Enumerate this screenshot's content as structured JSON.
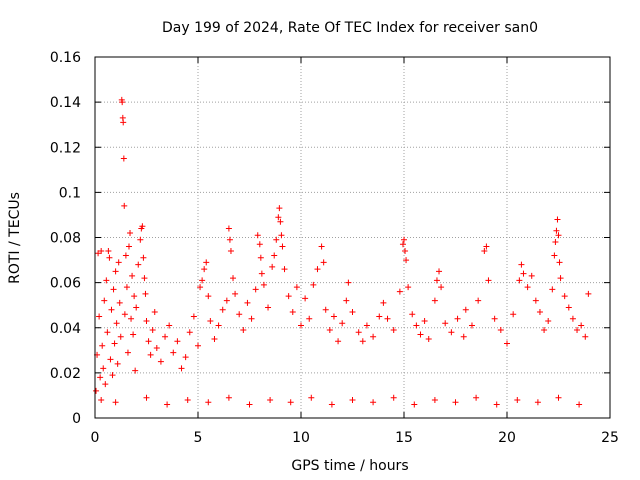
{
  "chart_data": {
    "type": "scatter",
    "title": "Day 199 of 2024, Rate Of TEC Index for receiver san0",
    "xlabel": "GPS time / hours",
    "ylabel": "ROTI / TECUs",
    "xlim": [
      0,
      25
    ],
    "ylim": [
      0,
      0.16
    ],
    "x_ticks": [
      0,
      5,
      10,
      15,
      20,
      25
    ],
    "x_tick_labels": [
      "0",
      "5",
      "10",
      "15",
      "20",
      "25"
    ],
    "y_ticks": [
      0,
      0.02,
      0.04,
      0.06,
      0.08,
      0.1,
      0.12,
      0.14,
      0.16
    ],
    "y_tick_labels": [
      "0",
      "0.02",
      "0.04",
      "0.06",
      "0.08",
      "0.1",
      "0.12",
      "0.14",
      "0.16"
    ],
    "grid": true,
    "marker": "+",
    "color": "#ff0000",
    "series": [
      {
        "name": "ROTI",
        "points": [
          [
            0.05,
            0.012
          ],
          [
            0.1,
            0.028
          ],
          [
            0.15,
            0.073
          ],
          [
            0.2,
            0.045
          ],
          [
            0.25,
            0.018
          ],
          [
            0.3,
            0.074
          ],
          [
            0.35,
            0.032
          ],
          [
            0.4,
            0.022
          ],
          [
            0.45,
            0.052
          ],
          [
            0.5,
            0.015
          ],
          [
            0.55,
            0.061
          ],
          [
            0.6,
            0.038
          ],
          [
            0.65,
            0.074
          ],
          [
            0.7,
            0.071
          ],
          [
            0.75,
            0.026
          ],
          [
            0.8,
            0.048
          ],
          [
            0.85,
            0.019
          ],
          [
            0.9,
            0.057
          ],
          [
            0.95,
            0.033
          ],
          [
            1.0,
            0.065
          ],
          [
            1.05,
            0.042
          ],
          [
            1.1,
            0.024
          ],
          [
            1.15,
            0.069
          ],
          [
            1.2,
            0.051
          ],
          [
            1.25,
            0.036
          ],
          [
            1.3,
            0.141
          ],
          [
            1.32,
            0.14
          ],
          [
            1.35,
            0.133
          ],
          [
            1.37,
            0.131
          ],
          [
            1.4,
            0.115
          ],
          [
            1.42,
            0.094
          ],
          [
            1.45,
            0.046
          ],
          [
            1.5,
            0.072
          ],
          [
            1.55,
            0.058
          ],
          [
            1.6,
            0.029
          ],
          [
            1.65,
            0.076
          ],
          [
            1.7,
            0.082
          ],
          [
            1.75,
            0.044
          ],
          [
            1.8,
            0.063
          ],
          [
            1.85,
            0.037
          ],
          [
            1.9,
            0.054
          ],
          [
            1.95,
            0.021
          ],
          [
            2.0,
            0.049
          ],
          [
            2.1,
            0.068
          ],
          [
            2.2,
            0.079
          ],
          [
            2.25,
            0.084
          ],
          [
            2.3,
            0.085
          ],
          [
            2.35,
            0.071
          ],
          [
            2.4,
            0.062
          ],
          [
            2.45,
            0.055
          ],
          [
            2.5,
            0.043
          ],
          [
            2.6,
            0.034
          ],
          [
            2.7,
            0.028
          ],
          [
            2.8,
            0.039
          ],
          [
            2.9,
            0.047
          ],
          [
            3.0,
            0.031
          ],
          [
            3.2,
            0.025
          ],
          [
            3.4,
            0.036
          ],
          [
            3.6,
            0.041
          ],
          [
            3.8,
            0.029
          ],
          [
            4.0,
            0.034
          ],
          [
            4.2,
            0.022
          ],
          [
            4.4,
            0.027
          ],
          [
            4.6,
            0.038
          ],
          [
            4.8,
            0.045
          ],
          [
            5.0,
            0.032
          ],
          [
            5.1,
            0.058
          ],
          [
            5.2,
            0.061
          ],
          [
            5.3,
            0.066
          ],
          [
            5.4,
            0.069
          ],
          [
            5.5,
            0.054
          ],
          [
            5.6,
            0.043
          ],
          [
            5.8,
            0.035
          ],
          [
            6.0,
            0.041
          ],
          [
            6.2,
            0.048
          ],
          [
            6.4,
            0.052
          ],
          [
            6.5,
            0.084
          ],
          [
            6.55,
            0.079
          ],
          [
            6.6,
            0.074
          ],
          [
            6.7,
            0.062
          ],
          [
            6.8,
            0.055
          ],
          [
            7.0,
            0.046
          ],
          [
            7.2,
            0.039
          ],
          [
            7.4,
            0.051
          ],
          [
            7.6,
            0.044
          ],
          [
            7.8,
            0.057
          ],
          [
            7.9,
            0.081
          ],
          [
            8.0,
            0.077
          ],
          [
            8.05,
            0.071
          ],
          [
            8.1,
            0.064
          ],
          [
            8.2,
            0.059
          ],
          [
            8.4,
            0.049
          ],
          [
            8.6,
            0.067
          ],
          [
            8.7,
            0.072
          ],
          [
            8.8,
            0.079
          ],
          [
            8.9,
            0.089
          ],
          [
            8.95,
            0.093
          ],
          [
            9.0,
            0.087
          ],
          [
            9.05,
            0.081
          ],
          [
            9.1,
            0.076
          ],
          [
            9.2,
            0.066
          ],
          [
            9.4,
            0.054
          ],
          [
            9.6,
            0.047
          ],
          [
            9.8,
            0.058
          ],
          [
            10.0,
            0.041
          ],
          [
            10.2,
            0.053
          ],
          [
            10.4,
            0.044
          ],
          [
            10.6,
            0.059
          ],
          [
            10.8,
            0.066
          ],
          [
            11.0,
            0.076
          ],
          [
            11.1,
            0.069
          ],
          [
            11.2,
            0.048
          ],
          [
            11.4,
            0.039
          ],
          [
            11.6,
            0.045
          ],
          [
            11.8,
            0.034
          ],
          [
            12.0,
            0.042
          ],
          [
            12.2,
            0.052
          ],
          [
            12.3,
            0.06
          ],
          [
            12.5,
            0.047
          ],
          [
            12.8,
            0.038
          ],
          [
            13.0,
            0.034
          ],
          [
            13.2,
            0.041
          ],
          [
            13.5,
            0.036
          ],
          [
            13.8,
            0.045
          ],
          [
            14.0,
            0.051
          ],
          [
            14.2,
            0.044
          ],
          [
            14.5,
            0.039
          ],
          [
            14.8,
            0.056
          ],
          [
            14.95,
            0.077
          ],
          [
            15.0,
            0.079
          ],
          [
            15.05,
            0.074
          ],
          [
            15.1,
            0.07
          ],
          [
            15.2,
            0.058
          ],
          [
            15.4,
            0.046
          ],
          [
            15.6,
            0.041
          ],
          [
            15.8,
            0.037
          ],
          [
            16.0,
            0.043
          ],
          [
            16.2,
            0.035
          ],
          [
            16.5,
            0.052
          ],
          [
            16.6,
            0.061
          ],
          [
            16.7,
            0.065
          ],
          [
            16.8,
            0.058
          ],
          [
            17.0,
            0.042
          ],
          [
            17.3,
            0.038
          ],
          [
            17.6,
            0.044
          ],
          [
            17.9,
            0.036
          ],
          [
            18.0,
            0.048
          ],
          [
            18.3,
            0.041
          ],
          [
            18.6,
            0.052
          ],
          [
            18.9,
            0.074
          ],
          [
            19.0,
            0.076
          ],
          [
            19.1,
            0.061
          ],
          [
            19.4,
            0.044
          ],
          [
            19.7,
            0.039
          ],
          [
            20.0,
            0.033
          ],
          [
            20.3,
            0.046
          ],
          [
            20.6,
            0.061
          ],
          [
            20.7,
            0.068
          ],
          [
            20.8,
            0.064
          ],
          [
            21.0,
            0.058
          ],
          [
            21.2,
            0.063
          ],
          [
            21.4,
            0.052
          ],
          [
            21.6,
            0.047
          ],
          [
            21.8,
            0.039
          ],
          [
            22.0,
            0.043
          ],
          [
            22.2,
            0.057
          ],
          [
            22.3,
            0.072
          ],
          [
            22.35,
            0.078
          ],
          [
            22.4,
            0.083
          ],
          [
            22.45,
            0.088
          ],
          [
            22.5,
            0.081
          ],
          [
            22.55,
            0.069
          ],
          [
            22.6,
            0.062
          ],
          [
            22.8,
            0.054
          ],
          [
            23.0,
            0.049
          ],
          [
            23.2,
            0.044
          ],
          [
            23.4,
            0.039
          ],
          [
            23.6,
            0.041
          ],
          [
            23.8,
            0.036
          ],
          [
            23.95,
            0.055
          ],
          [
            0.3,
            0.008
          ],
          [
            1.0,
            0.007
          ],
          [
            2.5,
            0.009
          ],
          [
            3.5,
            0.006
          ],
          [
            4.5,
            0.008
          ],
          [
            5.5,
            0.007
          ],
          [
            6.5,
            0.009
          ],
          [
            7.5,
            0.006
          ],
          [
            8.5,
            0.008
          ],
          [
            9.5,
            0.007
          ],
          [
            10.5,
            0.009
          ],
          [
            11.5,
            0.006
          ],
          [
            12.5,
            0.008
          ],
          [
            13.5,
            0.007
          ],
          [
            14.5,
            0.009
          ],
          [
            15.5,
            0.006
          ],
          [
            16.5,
            0.008
          ],
          [
            17.5,
            0.007
          ],
          [
            18.5,
            0.009
          ],
          [
            19.5,
            0.006
          ],
          [
            20.5,
            0.008
          ],
          [
            21.5,
            0.007
          ],
          [
            22.5,
            0.009
          ],
          [
            23.5,
            0.006
          ]
        ]
      }
    ]
  }
}
